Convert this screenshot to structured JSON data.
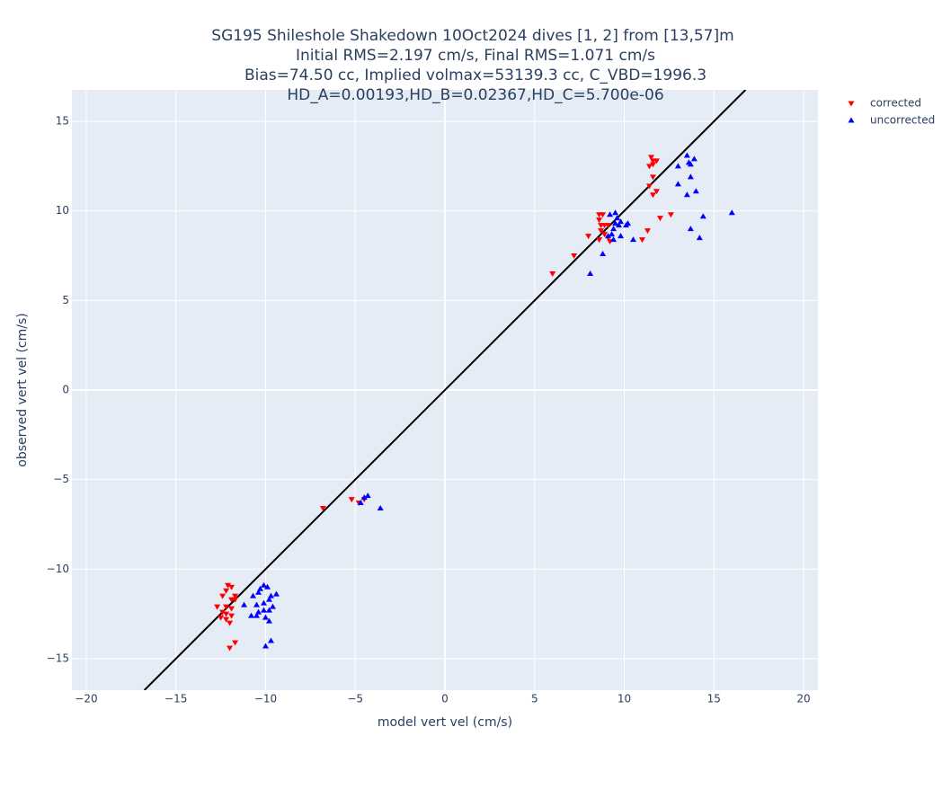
{
  "chart_data": {
    "type": "scatter",
    "title": [
      "SG195 Shileshole Shakedown 10Oct2024 dives [1, 2] from [13,57]m",
      "Initial RMS=2.197 cm/s, Final RMS=1.071 cm/s",
      "Bias=74.50 cc, Implied volmax=53139.3 cc, C_VBD=1996.3",
      "HD_A=0.00193,HD_B=0.02367,HD_C=5.700e-06"
    ],
    "x_label": "model vert vel (cm/s)",
    "y_label": "observed vert vel (cm/s)",
    "xlim": [
      -20.8,
      20.8
    ],
    "ylim": [
      -16.76,
      16.76
    ],
    "xticks": [
      {
        "value": -20,
        "label": "−20"
      },
      {
        "value": -15,
        "label": "−15"
      },
      {
        "value": -10,
        "label": "−10"
      },
      {
        "value": -5,
        "label": "−5"
      },
      0,
      5,
      10,
      15,
      20
    ],
    "yticks": [
      {
        "value": -15,
        "label": "−15"
      },
      {
        "value": -10,
        "label": "−10"
      },
      {
        "value": -5,
        "label": "−5"
      },
      0,
      5,
      10,
      15
    ],
    "grid": true,
    "legend_position": "outside-top-right",
    "diagonal": {
      "x": [
        -16.76,
        16.76
      ],
      "y": [
        -16.76,
        16.76
      ],
      "color": "#000000"
    },
    "series": [
      {
        "name": "corrected",
        "color": "#ff0000",
        "marker": "triangle-down",
        "x": [
          11.5,
          11.6,
          11.8,
          11.4,
          11.6,
          11.6,
          11.4,
          11.8,
          11.6,
          12.0,
          12.6,
          11.3,
          11.0,
          8.6,
          8.8,
          8.6,
          8.7,
          8.9,
          9.1,
          8.7,
          8.9,
          9.1,
          8.6,
          9.2,
          8.0,
          7.2,
          6.0,
          -5.2,
          -4.8,
          -4.5,
          -6.8,
          -12.1,
          -11.9,
          -12.2,
          -11.7,
          -11.9,
          -12.4,
          -11.7,
          -12.7,
          -12.2,
          -11.9,
          -12.4,
          -12.2,
          -11.9,
          -12.5,
          -12.2,
          -12.0,
          -11.7,
          -12.0
        ],
        "values": [
          13.0,
          12.8,
          12.8,
          12.5,
          12.6,
          11.9,
          11.4,
          11.1,
          10.9,
          9.6,
          9.8,
          8.9,
          8.4,
          9.8,
          9.8,
          9.5,
          9.2,
          9.2,
          9.2,
          8.9,
          8.7,
          8.5,
          8.4,
          8.3,
          8.6,
          7.5,
          6.5,
          -6.1,
          -6.3,
          -6.1,
          -6.6,
          -10.9,
          -11.0,
          -11.2,
          -11.5,
          -11.7,
          -11.5,
          -11.7,
          -12.1,
          -12.1,
          -12.2,
          -12.4,
          -12.5,
          -12.6,
          -12.7,
          -12.8,
          -13.0,
          -14.1,
          -14.4
        ]
      },
      {
        "name": "uncorrected",
        "color": "#0000ff",
        "marker": "triangle-up",
        "x": [
          13.5,
          13.6,
          13.7,
          13.9,
          13.0,
          13.7,
          13.0,
          14.0,
          13.5,
          14.4,
          16.0,
          13.7,
          14.2,
          9.5,
          9.2,
          9.6,
          9.8,
          9.5,
          10.2,
          10.1,
          9.7,
          9.4,
          9.3,
          9.8,
          9.1,
          9.4,
          10.5,
          8.8,
          8.1,
          -4.3,
          -4.5,
          -4.7,
          -3.6,
          -10.1,
          -9.9,
          -10.3,
          -10.4,
          -9.4,
          -9.7,
          -10.7,
          -9.8,
          -11.2,
          -10.5,
          -10.1,
          -9.6,
          -9.8,
          -10.1,
          -10.4,
          -10.5,
          -10.8,
          -10.0,
          -9.8,
          -9.7,
          -10.0
        ],
        "values": [
          13.1,
          12.7,
          12.6,
          12.9,
          12.5,
          11.9,
          11.5,
          11.1,
          10.9,
          9.7,
          9.9,
          9.0,
          8.5,
          9.9,
          9.8,
          9.6,
          9.4,
          9.3,
          9.3,
          9.2,
          9.2,
          9.0,
          8.7,
          8.6,
          8.6,
          8.4,
          8.4,
          7.6,
          6.5,
          -5.9,
          -6.0,
          -6.3,
          -6.6,
          -10.9,
          -11.0,
          -11.1,
          -11.3,
          -11.4,
          -11.5,
          -11.5,
          -11.7,
          -12.0,
          -12.0,
          -11.9,
          -12.1,
          -12.3,
          -12.3,
          -12.4,
          -12.6,
          -12.6,
          -12.7,
          -12.9,
          -14.0,
          -14.3
        ]
      }
    ]
  }
}
